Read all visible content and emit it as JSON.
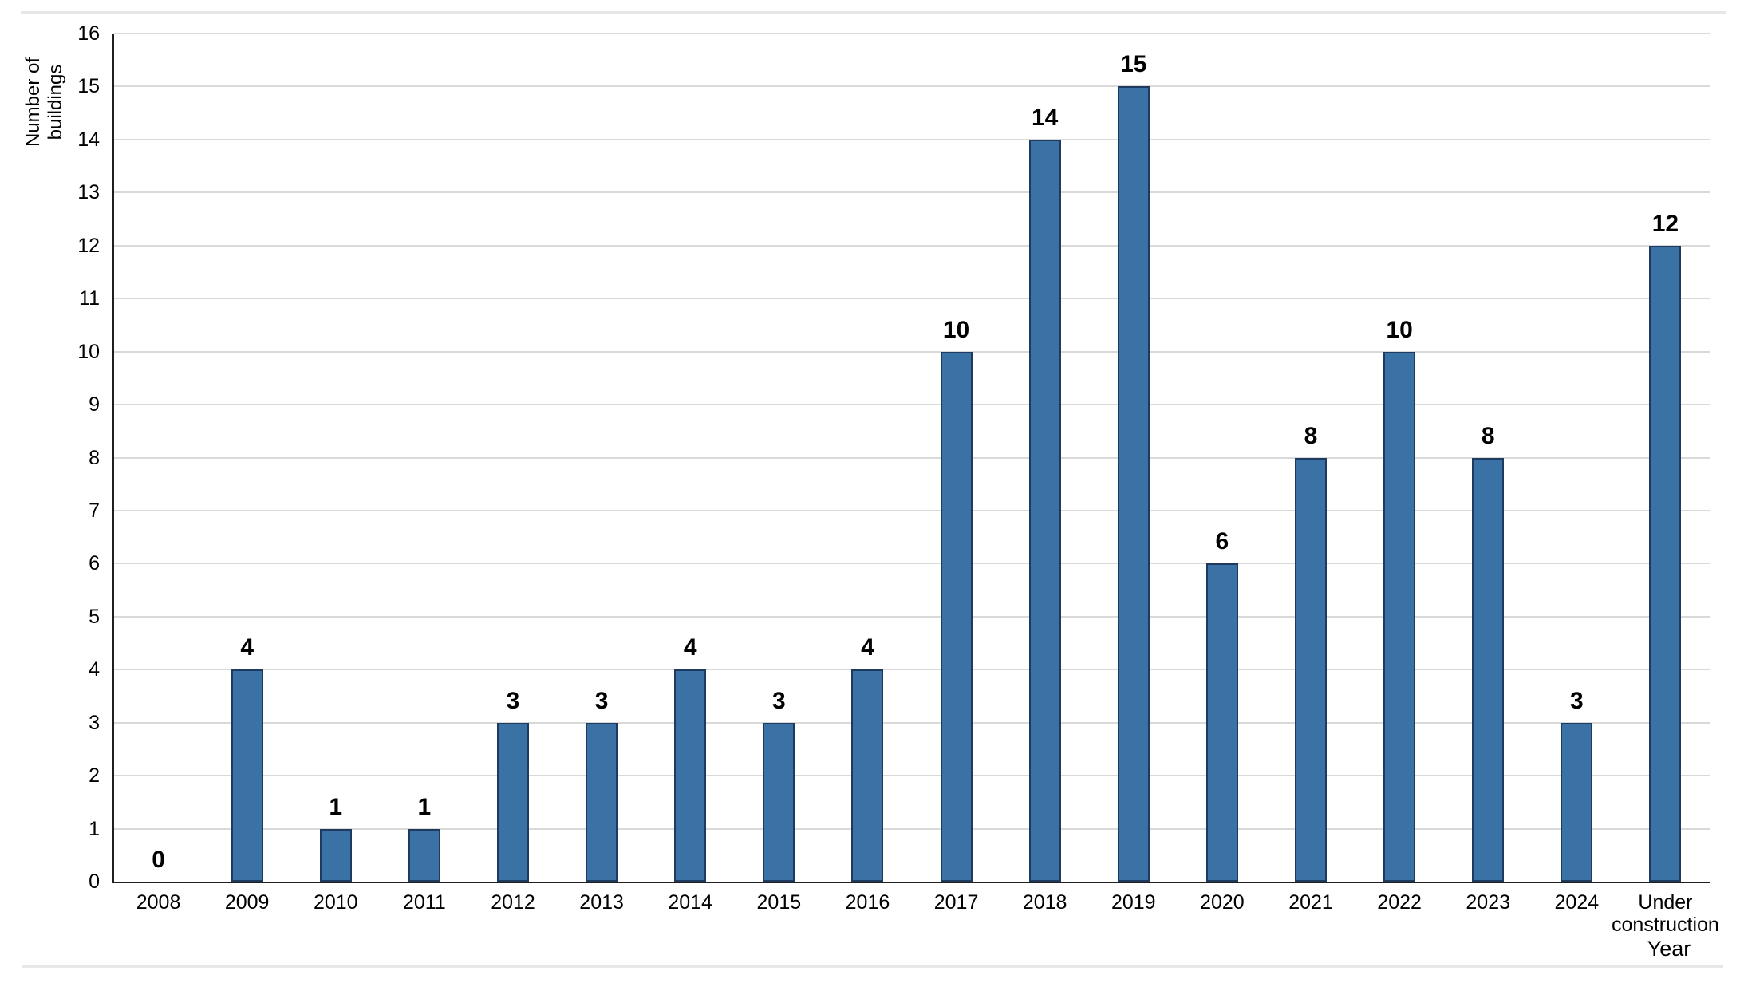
{
  "chart_data": {
    "type": "bar",
    "title": "",
    "categories": [
      "2008",
      "2009",
      "2010",
      "2011",
      "2012",
      "2013",
      "2014",
      "2015",
      "2016",
      "2017",
      "2018",
      "2019",
      "2020",
      "2021",
      "2022",
      "2023",
      "2024",
      "Under construction"
    ],
    "values": [
      0,
      4,
      1,
      1,
      3,
      3,
      4,
      3,
      4,
      10,
      14,
      15,
      6,
      8,
      10,
      8,
      3,
      12
    ],
    "xlabel": "Year",
    "ylabel": "Number of buildings",
    "ylim": [
      0,
      16
    ],
    "ytick_step": 1,
    "grid": true,
    "legend": "none",
    "value_labels_shown": true,
    "colors": {
      "bar_fill": "#3b72a6",
      "bar_border": "#1e3a5e",
      "gridline": "#d9d9d9",
      "axis_line": "#1f1f1f",
      "text": "#000000",
      "page_divider": "#e7e7e7"
    }
  }
}
